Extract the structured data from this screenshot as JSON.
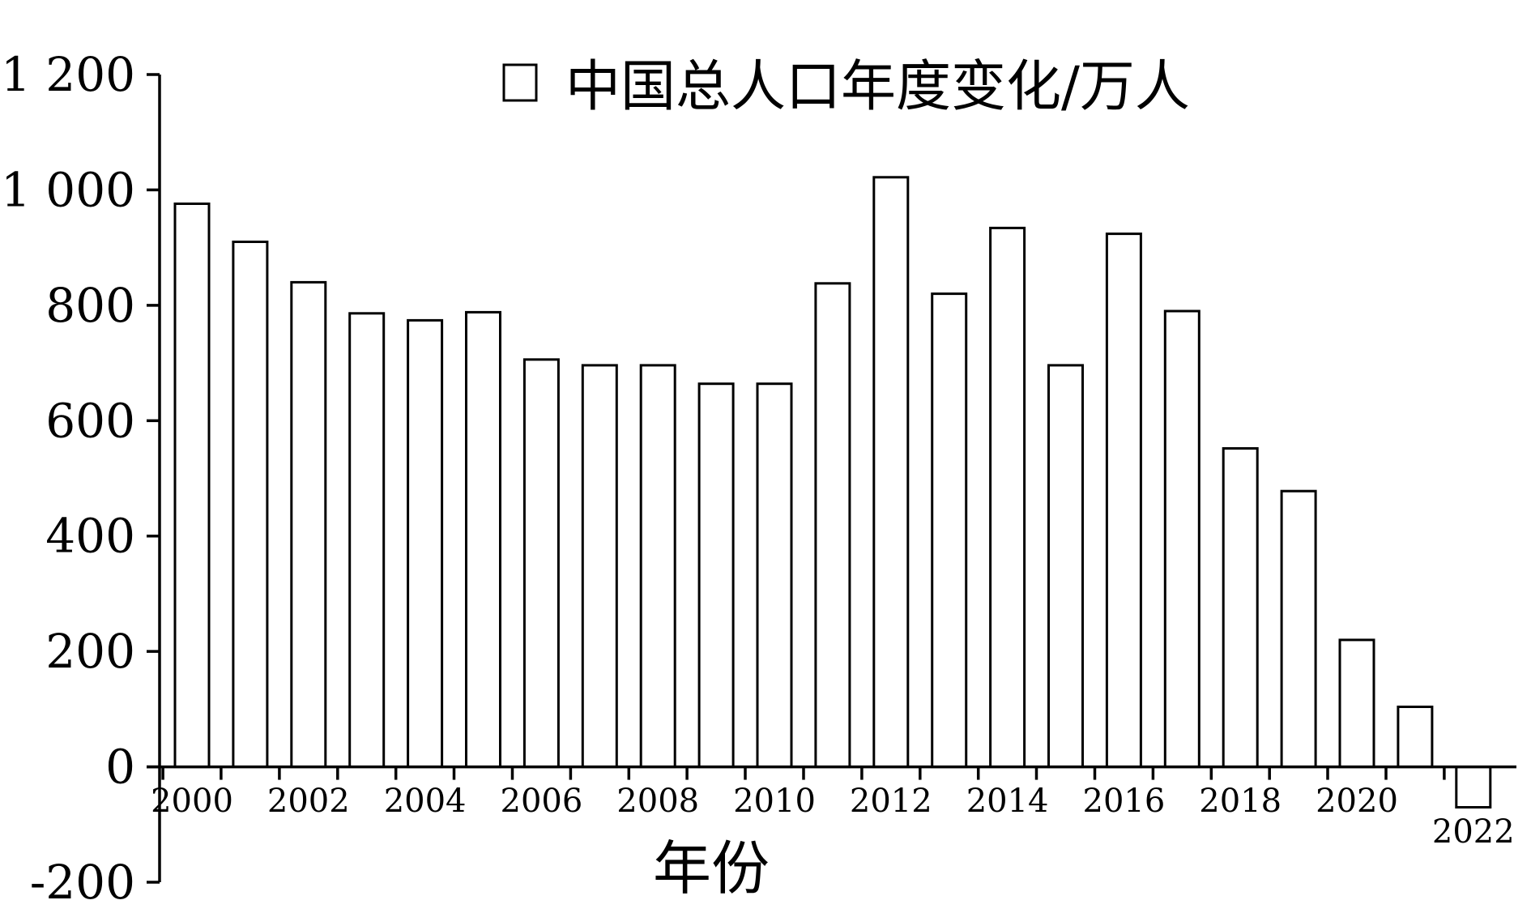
{
  "chart_data": {
    "type": "bar",
    "legend": "中国总人口年度变化/万人",
    "legend_position": "top",
    "xlabel": "年份",
    "ylabel": "",
    "ylim": [
      -200,
      1200
    ],
    "y_ticks": [
      -200,
      0,
      200,
      400,
      600,
      800,
      1000,
      1200
    ],
    "y_tick_labels": [
      "-200",
      "0",
      "200",
      "400",
      "600",
      "800",
      "1 000",
      "1 200"
    ],
    "x_tick_labels": [
      "2000",
      "2002",
      "2004",
      "2006",
      "2008",
      "2010",
      "2012",
      "2014",
      "2016",
      "2018",
      "2020",
      "2022"
    ],
    "grid": false,
    "categories": [
      2000,
      2001,
      2002,
      2003,
      2004,
      2005,
      2006,
      2007,
      2008,
      2009,
      2010,
      2011,
      2012,
      2013,
      2014,
      2015,
      2016,
      2017,
      2018,
      2019,
      2020,
      2021,
      2022
    ],
    "values": [
      976,
      910,
      840,
      786,
      774,
      788,
      706,
      696,
      696,
      664,
      664,
      838,
      1022,
      820,
      934,
      696,
      924,
      790,
      552,
      478,
      220,
      104,
      -70
    ],
    "colors": {
      "bar_fill": "#ffffff",
      "bar_stroke": "#000000"
    }
  }
}
